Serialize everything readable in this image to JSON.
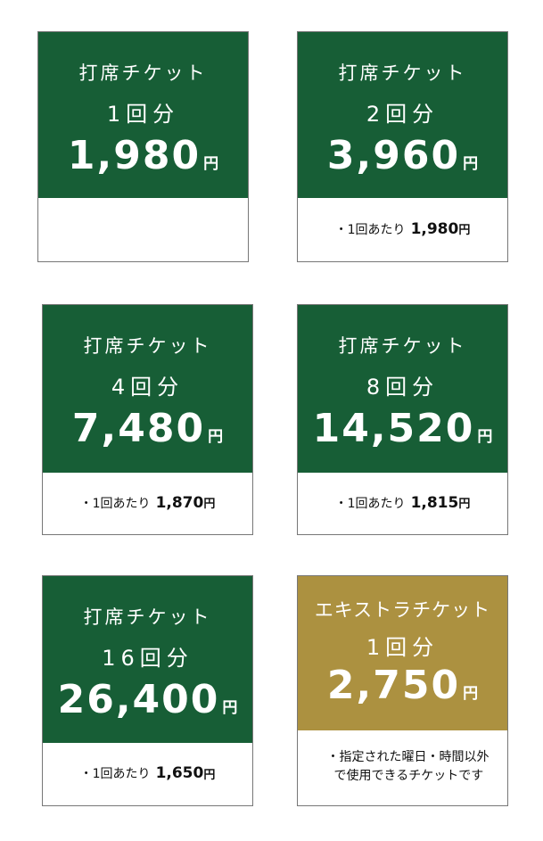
{
  "colors": {
    "ticket_green": "#175e36",
    "extra_gold": "#ac9140"
  },
  "cards": [
    {
      "title": "打席チケット",
      "count": "1回分",
      "price": "1,980",
      "yen": "円",
      "note_prefix": "",
      "note_value": "",
      "note_yen": ""
    },
    {
      "title": "打席チケット",
      "count": "2回分",
      "price": "3,960",
      "yen": "円",
      "note_prefix": "・1回あたり",
      "note_value": "1,980",
      "note_yen": "円"
    },
    {
      "title": "打席チケット",
      "count": "4回分",
      "price": "7,480",
      "yen": "円",
      "note_prefix": "・1回あたり",
      "note_value": "1,870",
      "note_yen": "円"
    },
    {
      "title": "打席チケット",
      "count": "8回分",
      "price": "14,520",
      "yen": "円",
      "note_prefix": "・1回あたり",
      "note_value": "1,815",
      "note_yen": "円"
    },
    {
      "title": "打席チケット",
      "count": "16回分",
      "price": "26,400",
      "yen": "円",
      "note_prefix": "・1回あたり",
      "note_value": "1,650",
      "note_yen": "円"
    },
    {
      "title": "エキストラチケット",
      "count": "1回分",
      "price": "2,750",
      "yen": "円",
      "note_line1": "・指定された曜日・時間以外",
      "note_line2": "で使用できるチケットです"
    }
  ]
}
